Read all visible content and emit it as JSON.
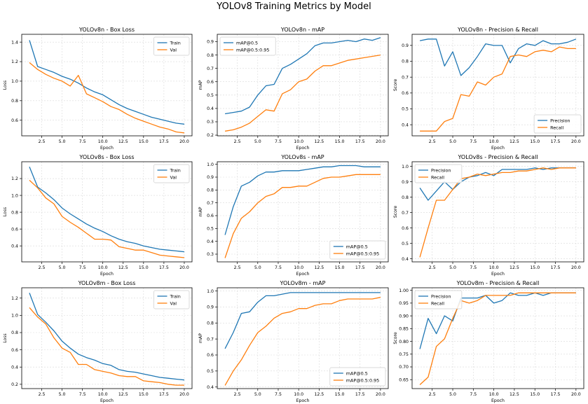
{
  "suptitle": "YOLOv8 Training Metrics by Model",
  "colors": {
    "series1": "#1f77b4",
    "series2": "#ff7f0e",
    "grid": "#d9d9d9",
    "axis": "#000000"
  },
  "chart_data": [
    {
      "type": "line",
      "title": "YOLOv8n - Box Loss",
      "xlabel": "Epoch",
      "ylabel": "Loss",
      "xlim": [
        0.05,
        20.95
      ],
      "ylim": [
        0.44,
        1.48
      ],
      "xticks": [
        "2.5",
        "5.0",
        "7.5",
        "10.0",
        "12.5",
        "15.0",
        "17.5",
        "20.0"
      ],
      "yticks": [
        "0.6",
        "0.8",
        "1.0",
        "1.2",
        "1.4"
      ],
      "ytick_values": [
        0.6,
        0.8,
        1.0,
        1.2,
        1.4
      ],
      "grid": true,
      "legend_position": "top-right",
      "x": [
        1,
        2,
        3,
        4,
        5,
        6,
        7,
        8,
        9,
        10,
        11,
        12,
        13,
        14,
        15,
        16,
        17,
        18,
        19,
        20
      ],
      "series": [
        {
          "name": "Train",
          "values": [
            1.42,
            1.15,
            1.12,
            1.09,
            1.05,
            1.02,
            0.98,
            0.93,
            0.89,
            0.86,
            0.81,
            0.76,
            0.72,
            0.69,
            0.66,
            0.63,
            0.61,
            0.59,
            0.57,
            0.56
          ]
        },
        {
          "name": "Val",
          "values": [
            1.19,
            1.12,
            1.07,
            1.03,
            1.0,
            0.95,
            1.06,
            0.87,
            0.83,
            0.79,
            0.74,
            0.71,
            0.66,
            0.62,
            0.59,
            0.56,
            0.53,
            0.51,
            0.48,
            0.47
          ]
        }
      ]
    },
    {
      "type": "line",
      "title": "YOLOv8n - mAP",
      "xlabel": "Epoch",
      "ylabel": "mAP",
      "xlim": [
        0.05,
        20.95
      ],
      "ylim": [
        0.195,
        0.955
      ],
      "xticks": [
        "2.5",
        "5.0",
        "7.5",
        "10.0",
        "12.5",
        "15.0",
        "17.5",
        "20.0"
      ],
      "yticks": [
        "0.2",
        "0.3",
        "0.4",
        "0.5",
        "0.6",
        "0.7",
        "0.8",
        "0.9"
      ],
      "ytick_values": [
        0.2,
        0.3,
        0.4,
        0.5,
        0.6,
        0.7,
        0.8,
        0.9
      ],
      "grid": true,
      "legend_position": "top-left",
      "x": [
        1,
        2,
        3,
        4,
        5,
        6,
        7,
        8,
        9,
        10,
        11,
        12,
        13,
        14,
        15,
        16,
        17,
        18,
        19,
        20
      ],
      "series": [
        {
          "name": "mAP@0.5",
          "values": [
            0.36,
            0.37,
            0.38,
            0.41,
            0.5,
            0.57,
            0.58,
            0.7,
            0.73,
            0.77,
            0.81,
            0.87,
            0.89,
            0.89,
            0.9,
            0.91,
            0.9,
            0.92,
            0.91,
            0.93
          ]
        },
        {
          "name": "mAP@0.5:0.95",
          "values": [
            0.23,
            0.24,
            0.26,
            0.29,
            0.34,
            0.39,
            0.38,
            0.51,
            0.54,
            0.6,
            0.62,
            0.68,
            0.72,
            0.72,
            0.74,
            0.76,
            0.77,
            0.78,
            0.79,
            0.8
          ]
        }
      ]
    },
    {
      "type": "line",
      "title": "YOLOv8n - Precision & Recall",
      "xlabel": "Epoch",
      "ylabel": "Score",
      "xlim": [
        0.05,
        20.95
      ],
      "ylim": [
        0.33,
        0.97
      ],
      "xticks": [
        "2.5",
        "5.0",
        "7.5",
        "10.0",
        "12.5",
        "15.0",
        "17.5",
        "20.0"
      ],
      "yticks": [
        "0.4",
        "0.5",
        "0.6",
        "0.7",
        "0.8",
        "0.9"
      ],
      "ytick_values": [
        0.4,
        0.5,
        0.6,
        0.7,
        0.8,
        0.9
      ],
      "grid": true,
      "legend_position": "bottom-right",
      "x": [
        1,
        2,
        3,
        4,
        5,
        6,
        7,
        8,
        9,
        10,
        11,
        12,
        13,
        14,
        15,
        16,
        17,
        18,
        19,
        20
      ],
      "series": [
        {
          "name": "Precision",
          "values": [
            0.93,
            0.94,
            0.94,
            0.77,
            0.86,
            0.71,
            0.76,
            0.83,
            0.91,
            0.9,
            0.9,
            0.79,
            0.88,
            0.91,
            0.9,
            0.93,
            0.91,
            0.91,
            0.92,
            0.94
          ]
        },
        {
          "name": "Recall",
          "values": [
            0.36,
            0.36,
            0.36,
            0.42,
            0.44,
            0.59,
            0.58,
            0.67,
            0.65,
            0.7,
            0.72,
            0.83,
            0.84,
            0.83,
            0.86,
            0.87,
            0.86,
            0.89,
            0.88,
            0.88
          ]
        }
      ]
    },
    {
      "type": "line",
      "title": "YOLOv8s - Box Loss",
      "xlabel": "Epoch",
      "ylabel": "Loss",
      "xlim": [
        0.05,
        20.95
      ],
      "ylim": [
        0.21,
        1.4
      ],
      "xticks": [
        "2.5",
        "5.0",
        "7.5",
        "10.0",
        "12.5",
        "15.0",
        "17.5",
        "20.0"
      ],
      "yticks": [
        "0.4",
        "0.6",
        "0.8",
        "1.0",
        "1.2"
      ],
      "ytick_values": [
        0.4,
        0.6,
        0.8,
        1.0,
        1.2
      ],
      "grid": true,
      "legend_position": "top-right",
      "x": [
        1,
        2,
        3,
        4,
        5,
        6,
        7,
        8,
        9,
        10,
        11,
        12,
        13,
        14,
        15,
        16,
        17,
        18,
        19,
        20
      ],
      "series": [
        {
          "name": "Train",
          "values": [
            1.34,
            1.1,
            1.03,
            0.95,
            0.85,
            0.78,
            0.72,
            0.66,
            0.61,
            0.57,
            0.52,
            0.48,
            0.45,
            0.43,
            0.4,
            0.38,
            0.36,
            0.35,
            0.34,
            0.33
          ]
        },
        {
          "name": "Val",
          "values": [
            1.18,
            1.09,
            0.97,
            0.9,
            0.75,
            0.68,
            0.62,
            0.55,
            0.48,
            0.48,
            0.47,
            0.39,
            0.37,
            0.35,
            0.35,
            0.32,
            0.29,
            0.28,
            0.27,
            0.26
          ]
        }
      ]
    },
    {
      "type": "line",
      "title": "YOLOv8s - mAP",
      "xlabel": "Epoch",
      "ylabel": "mAP",
      "xlim": [
        0.05,
        20.95
      ],
      "ylim": [
        0.24,
        1.02
      ],
      "xticks": [
        "2.5",
        "5.0",
        "7.5",
        "10.0",
        "12.5",
        "15.0",
        "17.5",
        "20.0"
      ],
      "yticks": [
        "0.3",
        "0.4",
        "0.5",
        "0.6",
        "0.7",
        "0.8",
        "0.9",
        "1.0"
      ],
      "ytick_values": [
        0.3,
        0.4,
        0.5,
        0.6,
        0.7,
        0.8,
        0.9,
        1.0
      ],
      "grid": true,
      "legend_position": "bottom-right",
      "x": [
        1,
        2,
        3,
        4,
        5,
        6,
        7,
        8,
        9,
        10,
        11,
        12,
        13,
        14,
        15,
        16,
        17,
        18,
        19,
        20
      ],
      "series": [
        {
          "name": "mAP@0.5",
          "values": [
            0.45,
            0.67,
            0.83,
            0.86,
            0.91,
            0.94,
            0.94,
            0.95,
            0.95,
            0.95,
            0.96,
            0.97,
            0.98,
            0.98,
            0.99,
            0.99,
            0.99,
            0.98,
            0.98,
            0.98
          ]
        },
        {
          "name": "mAP@0.5:0.95",
          "values": [
            0.27,
            0.46,
            0.58,
            0.63,
            0.7,
            0.75,
            0.77,
            0.82,
            0.82,
            0.83,
            0.83,
            0.86,
            0.89,
            0.9,
            0.9,
            0.91,
            0.92,
            0.92,
            0.92,
            0.92
          ]
        }
      ]
    },
    {
      "type": "line",
      "title": "YOLOv8s - Precision & Recall",
      "xlabel": "Epoch",
      "ylabel": "Score",
      "xlim": [
        0.05,
        20.95
      ],
      "ylim": [
        0.38,
        1.03
      ],
      "xticks": [
        "2.5",
        "5.0",
        "7.5",
        "10.0",
        "12.5",
        "15.0",
        "17.5",
        "20.0"
      ],
      "yticks": [
        "0.4",
        "0.5",
        "0.6",
        "0.7",
        "0.8",
        "0.9",
        "1.0"
      ],
      "ytick_values": [
        0.4,
        0.5,
        0.6,
        0.7,
        0.8,
        0.9,
        1.0
      ],
      "grid": true,
      "legend_position": "top-left",
      "x": [
        1,
        2,
        3,
        4,
        5,
        6,
        7,
        8,
        9,
        10,
        11,
        12,
        13,
        14,
        15,
        16,
        17,
        18,
        19,
        20
      ],
      "series": [
        {
          "name": "Precision",
          "values": [
            0.86,
            0.78,
            0.84,
            0.9,
            0.85,
            0.9,
            0.93,
            0.94,
            0.96,
            0.94,
            0.98,
            0.98,
            0.98,
            0.98,
            0.99,
            0.98,
            0.99,
            0.99,
            0.99,
            0.99
          ]
        },
        {
          "name": "Recall",
          "values": [
            0.41,
            0.6,
            0.78,
            0.78,
            0.85,
            0.92,
            0.93,
            0.95,
            0.94,
            0.95,
            0.96,
            0.96,
            0.97,
            0.97,
            0.98,
            0.99,
            0.98,
            0.99,
            0.99,
            0.99
          ]
        }
      ]
    },
    {
      "type": "line",
      "title": "YOLOv8m - Box Loss",
      "xlabel": "Epoch",
      "ylabel": "Loss",
      "xlim": [
        0.05,
        20.95
      ],
      "ylim": [
        0.15,
        1.32
      ],
      "xticks": [
        "2.5",
        "5.0",
        "7.5",
        "10.0",
        "12.5",
        "15.0",
        "17.5",
        "20.0"
      ],
      "yticks": [
        "0.2",
        "0.4",
        "0.6",
        "0.8",
        "1.0",
        "1.2"
      ],
      "ytick_values": [
        0.2,
        0.4,
        0.6,
        0.8,
        1.0,
        1.2
      ],
      "grid": true,
      "legend_position": "top-right",
      "x": [
        1,
        2,
        3,
        4,
        5,
        6,
        7,
        8,
        9,
        10,
        11,
        12,
        13,
        14,
        15,
        16,
        17,
        18,
        19,
        20
      ],
      "series": [
        {
          "name": "Train",
          "values": [
            1.26,
            1.01,
            0.92,
            0.82,
            0.7,
            0.62,
            0.55,
            0.51,
            0.48,
            0.44,
            0.42,
            0.37,
            0.35,
            0.34,
            0.32,
            0.3,
            0.28,
            0.27,
            0.26,
            0.25
          ]
        },
        {
          "name": "Val",
          "values": [
            1.09,
            0.98,
            0.9,
            0.74,
            0.62,
            0.57,
            0.43,
            0.43,
            0.37,
            0.35,
            0.33,
            0.3,
            0.29,
            0.29,
            0.24,
            0.23,
            0.22,
            0.2,
            0.19,
            0.19
          ]
        }
      ]
    },
    {
      "type": "line",
      "title": "YOLOv8m - mAP",
      "xlabel": "Epoch",
      "ylabel": "mAP",
      "xlim": [
        0.05,
        20.95
      ],
      "ylim": [
        0.39,
        1.02
      ],
      "xticks": [
        "2.5",
        "5.0",
        "7.5",
        "10.0",
        "12.5",
        "15.0",
        "17.5",
        "20.0"
      ],
      "yticks": [
        "0.4",
        "0.5",
        "0.6",
        "0.7",
        "0.8",
        "0.9",
        "1.0"
      ],
      "ytick_values": [
        0.4,
        0.5,
        0.6,
        0.7,
        0.8,
        0.9,
        1.0
      ],
      "grid": true,
      "legend_position": "bottom-right",
      "x": [
        1,
        2,
        3,
        4,
        5,
        6,
        7,
        8,
        9,
        10,
        11,
        12,
        13,
        14,
        15,
        16,
        17,
        18,
        19,
        20
      ],
      "series": [
        {
          "name": "mAP@0.5",
          "values": [
            0.64,
            0.74,
            0.86,
            0.87,
            0.93,
            0.97,
            0.97,
            0.98,
            0.99,
            0.99,
            0.99,
            0.99,
            0.99,
            0.99,
            0.99,
            0.99,
            0.99,
            0.99,
            0.99,
            0.99
          ]
        },
        {
          "name": "mAP@0.5:0.95",
          "values": [
            0.41,
            0.5,
            0.57,
            0.66,
            0.74,
            0.78,
            0.83,
            0.86,
            0.87,
            0.89,
            0.89,
            0.91,
            0.92,
            0.92,
            0.94,
            0.95,
            0.95,
            0.95,
            0.95,
            0.96
          ]
        }
      ]
    },
    {
      "type": "line",
      "title": "YOLOv8m - Precision & Recall",
      "xlabel": "Epoch",
      "ylabel": "Score",
      "xlim": [
        0.05,
        20.95
      ],
      "ylim": [
        0.615,
        1.01
      ],
      "xticks": [
        "2.5",
        "5.0",
        "7.5",
        "10.0",
        "12.5",
        "15.0",
        "17.5",
        "20.0"
      ],
      "yticks": [
        "0.65",
        "0.70",
        "0.75",
        "0.80",
        "0.85",
        "0.90",
        "0.95",
        "1.00"
      ],
      "ytick_values": [
        0.65,
        0.7,
        0.75,
        0.8,
        0.85,
        0.9,
        0.95,
        1.0
      ],
      "grid": true,
      "legend_position": "top-left",
      "x": [
        1,
        2,
        3,
        4,
        5,
        6,
        7,
        8,
        9,
        10,
        11,
        12,
        13,
        14,
        15,
        16,
        17,
        18,
        19,
        20
      ],
      "series": [
        {
          "name": "Precision",
          "values": [
            0.77,
            0.89,
            0.83,
            0.9,
            0.88,
            0.97,
            0.97,
            0.97,
            0.98,
            0.95,
            0.96,
            0.99,
            0.98,
            0.98,
            0.99,
            0.98,
            0.99,
            0.99,
            0.99,
            0.99
          ]
        },
        {
          "name": "Recall",
          "values": [
            0.63,
            0.66,
            0.78,
            0.81,
            0.89,
            0.96,
            0.95,
            0.96,
            0.98,
            0.98,
            0.98,
            0.98,
            0.99,
            0.99,
            0.99,
            0.99,
            0.99,
            0.99,
            0.99,
            0.99
          ]
        }
      ]
    }
  ]
}
